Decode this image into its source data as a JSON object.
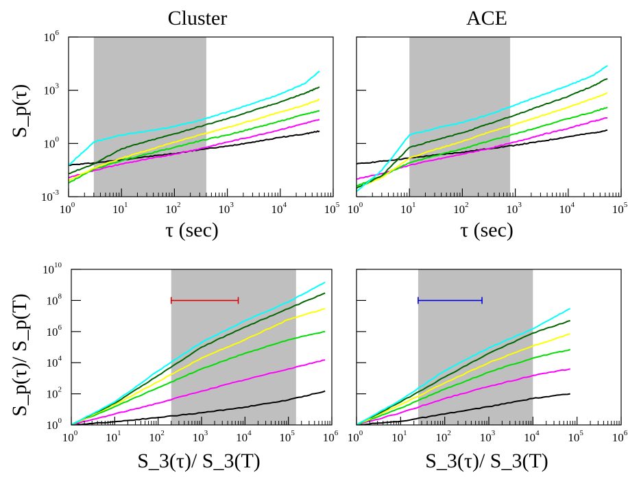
{
  "figure": {
    "col_titles": [
      "Cluster",
      "ACE"
    ]
  },
  "chart_data": [
    {
      "type": "line",
      "panel": "top-left",
      "title": "Cluster",
      "xlabel": "τ (sec)",
      "ylabel": "S_p(τ)",
      "xscale": "log",
      "yscale": "log",
      "xlim": [
        1,
        100000
      ],
      "ylim": [
        0.001,
        1000000
      ],
      "xticks": [
        {
          "v": 1,
          "m": "0"
        },
        {
          "v": 10,
          "m": "1"
        },
        {
          "v": 100,
          "m": "2"
        },
        {
          "v": 1000,
          "m": "3"
        },
        {
          "v": 10000,
          "m": "4"
        },
        {
          "v": 100000,
          "m": "5"
        }
      ],
      "yticks": [
        {
          "v": 0.001,
          "m": "-3"
        },
        {
          "v": 1,
          "m": "0"
        },
        {
          "v": 1000,
          "m": "3"
        },
        {
          "v": 1000000,
          "m": "6"
        }
      ],
      "shaded_x": [
        3,
        400
      ],
      "series": [
        {
          "color": "#000000",
          "x": [
            1,
            3,
            10,
            30,
            100,
            300,
            1000,
            3000,
            10000,
            30000,
            55000
          ],
          "y": [
            0.06,
            0.08,
            0.12,
            0.18,
            0.27,
            0.45,
            0.7,
            1.2,
            2.2,
            3.5,
            5
          ]
        },
        {
          "color": "#ff00ff",
          "x": [
            1,
            3,
            10,
            30,
            100,
            300,
            1000,
            3000,
            10000,
            30000,
            55000
          ],
          "y": [
            0.012,
            0.03,
            0.07,
            0.13,
            0.25,
            0.5,
            1.2,
            2.5,
            6,
            14,
            22
          ]
        },
        {
          "color": "#00dd00",
          "x": [
            1,
            3,
            10,
            30,
            100,
            300,
            1000,
            3000,
            10000,
            30000,
            55000
          ],
          "y": [
            0.006,
            0.035,
            0.11,
            0.25,
            0.6,
            1.4,
            3,
            7,
            18,
            45,
            70
          ]
        },
        {
          "color": "#ffff00",
          "x": [
            1,
            3,
            10,
            30,
            100,
            300,
            1000,
            3000,
            10000,
            30000,
            55000
          ],
          "y": [
            0.008,
            0.04,
            0.15,
            0.4,
            1.2,
            3,
            8,
            20,
            60,
            150,
            300
          ]
        },
        {
          "color": "#006400",
          "x": [
            1,
            3,
            10,
            30,
            100,
            300,
            1000,
            3000,
            10000,
            30000,
            55000
          ],
          "y": [
            0.02,
            0.07,
            0.5,
            1.3,
            3.5,
            9,
            25,
            70,
            220,
            700,
            1500
          ]
        },
        {
          "color": "#00ffff",
          "x": [
            1,
            3,
            10,
            30,
            100,
            300,
            1000,
            3000,
            10000,
            30000,
            55000
          ],
          "y": [
            0.06,
            1.2,
            3,
            5,
            9,
            20,
            60,
            180,
            600,
            2500,
            12000
          ]
        }
      ]
    },
    {
      "type": "line",
      "panel": "top-right",
      "title": "ACE",
      "xlabel": "τ (sec)",
      "ylabel": "",
      "xscale": "log",
      "yscale": "log",
      "xlim": [
        1,
        100000
      ],
      "ylim": [
        0.001,
        1000000
      ],
      "xticks": [
        {
          "v": 1,
          "m": "0"
        },
        {
          "v": 10,
          "m": "1"
        },
        {
          "v": 100,
          "m": "2"
        },
        {
          "v": 1000,
          "m": "3"
        },
        {
          "v": 10000,
          "m": "4"
        },
        {
          "v": 100000,
          "m": "5"
        }
      ],
      "yticks": [
        {
          "v": 0.001,
          "m": ""
        },
        {
          "v": 1,
          "m": ""
        },
        {
          "v": 1000,
          "m": ""
        },
        {
          "v": 1000000,
          "m": ""
        }
      ],
      "shaded_x": [
        10,
        800
      ],
      "series": [
        {
          "color": "#000000",
          "x": [
            1,
            3,
            10,
            30,
            100,
            300,
            1000,
            3000,
            10000,
            30000,
            55000
          ],
          "y": [
            0.07,
            0.1,
            0.15,
            0.22,
            0.32,
            0.5,
            0.8,
            1.3,
            2.4,
            4,
            5.5
          ]
        },
        {
          "color": "#ff00ff",
          "x": [
            1,
            3,
            10,
            30,
            100,
            300,
            1000,
            3000,
            10000,
            30000,
            55000
          ],
          "y": [
            0.01,
            0.02,
            0.06,
            0.12,
            0.25,
            0.5,
            1.2,
            3,
            7,
            18,
            28
          ]
        },
        {
          "color": "#00dd00",
          "x": [
            1,
            3,
            10,
            30,
            100,
            300,
            1000,
            3000,
            10000,
            30000,
            55000
          ],
          "y": [
            0.004,
            0.015,
            0.08,
            0.2,
            0.5,
            1.3,
            3.5,
            9,
            25,
            60,
            110
          ]
        },
        {
          "color": "#ffff00",
          "x": [
            1,
            3,
            10,
            30,
            100,
            300,
            1000,
            3000,
            10000,
            30000,
            55000
          ],
          "y": [
            0.003,
            0.012,
            0.15,
            0.45,
            1.3,
            4,
            12,
            35,
            110,
            350,
            700
          ]
        },
        {
          "color": "#006400",
          "x": [
            1,
            3,
            10,
            30,
            100,
            300,
            1000,
            3000,
            10000,
            30000,
            55000
          ],
          "y": [
            0.003,
            0.015,
            0.6,
            1.5,
            4,
            12,
            40,
            130,
            450,
            1800,
            4500
          ]
        },
        {
          "color": "#00ffff",
          "x": [
            1,
            3,
            10,
            30,
            100,
            300,
            1000,
            3000,
            10000,
            30000,
            55000
          ],
          "y": [
            0.002,
            0.03,
            3,
            7,
            15,
            40,
            150,
            500,
            1800,
            7000,
            25000
          ]
        }
      ]
    },
    {
      "type": "line",
      "panel": "bottom-left",
      "title": "",
      "xlabel": "S_3(τ)/ S_3(T)",
      "ylabel": "S_p(τ)/ S_p(T)",
      "xscale": "log",
      "yscale": "log",
      "xlim": [
        1,
        1000000
      ],
      "ylim": [
        1,
        10000000000
      ],
      "xticks": [
        {
          "v": 1,
          "m": "0"
        },
        {
          "v": 10,
          "m": "1"
        },
        {
          "v": 100,
          "m": "2"
        },
        {
          "v": 1000,
          "m": "3"
        },
        {
          "v": 10000,
          "m": "4"
        },
        {
          "v": 100000,
          "m": "5"
        },
        {
          "v": 1000000,
          "m": "6"
        }
      ],
      "yticks": [
        {
          "v": 1,
          "m": "0"
        },
        {
          "v": 100,
          "m": "2"
        },
        {
          "v": 10000,
          "m": "4"
        },
        {
          "v": 1000000,
          "m": "6"
        },
        {
          "v": 100000000,
          "m": "8"
        },
        {
          "v": 10000000000,
          "m": "10"
        }
      ],
      "shaded_x": [
        200,
        150000
      ],
      "errorbar": {
        "color": "#dd0000",
        "x": [
          200,
          7000
        ],
        "y": 100000000
      },
      "series": [
        {
          "color": "#000000",
          "x": [
            1,
            10,
            100,
            1000,
            10000,
            100000,
            700000
          ],
          "y": [
            1,
            1.6,
            3,
            6,
            14,
            40,
            150
          ]
        },
        {
          "color": "#ff00ff",
          "x": [
            1,
            10,
            100,
            1000,
            10000,
            100000,
            700000
          ],
          "y": [
            1,
            5,
            25,
            150,
            800,
            4000,
            15000
          ]
        },
        {
          "color": "#00dd00",
          "x": [
            1,
            10,
            100,
            1000,
            10000,
            100000,
            700000
          ],
          "y": [
            1,
            15,
            250,
            4000,
            40000,
            300000,
            1000000
          ]
        },
        {
          "color": "#ffff00",
          "x": [
            1,
            10,
            100,
            1000,
            10000,
            100000,
            700000
          ],
          "y": [
            1,
            20,
            600,
            20000,
            300000,
            6000000,
            30000000
          ]
        },
        {
          "color": "#006400",
          "x": [
            1,
            10,
            100,
            1000,
            10000,
            100000,
            700000
          ],
          "y": [
            1,
            25,
            1500,
            100000,
            2000000,
            30000000,
            300000000
          ]
        },
        {
          "color": "#00ffff",
          "x": [
            1,
            10,
            100,
            1000,
            10000,
            100000,
            700000
          ],
          "y": [
            1,
            30,
            3000,
            200000,
            5000000,
            80000000,
            1500000000
          ]
        }
      ]
    },
    {
      "type": "line",
      "panel": "bottom-right",
      "title": "",
      "xlabel": "S_3(τ)/ S_3(T)",
      "ylabel": "",
      "xscale": "log",
      "yscale": "log",
      "xlim": [
        1,
        1000000
      ],
      "ylim": [
        1,
        10000000000
      ],
      "xticks": [
        {
          "v": 1,
          "m": "0"
        },
        {
          "v": 10,
          "m": "1"
        },
        {
          "v": 100,
          "m": "2"
        },
        {
          "v": 1000,
          "m": "3"
        },
        {
          "v": 10000,
          "m": "4"
        },
        {
          "v": 100000,
          "m": "5"
        },
        {
          "v": 1000000,
          "m": "6"
        }
      ],
      "yticks": [
        {
          "v": 1,
          "m": ""
        },
        {
          "v": 100,
          "m": ""
        },
        {
          "v": 10000,
          "m": ""
        },
        {
          "v": 1000000,
          "m": ""
        },
        {
          "v": 100000000,
          "m": ""
        },
        {
          "v": 10000000000,
          "m": ""
        }
      ],
      "shaded_x": [
        25,
        10000
      ],
      "errorbar": {
        "color": "#0000dd",
        "x": [
          25,
          700
        ],
        "y": 100000000
      },
      "series": [
        {
          "color": "#000000",
          "x": [
            1,
            10,
            100,
            1000,
            10000,
            70000
          ],
          "y": [
            1,
            1.7,
            5,
            15,
            50,
            100
          ]
        },
        {
          "color": "#ff00ff",
          "x": [
            1,
            10,
            100,
            1000,
            10000,
            70000
          ],
          "y": [
            1,
            6,
            50,
            300,
            1500,
            4000
          ]
        },
        {
          "color": "#00dd00",
          "x": [
            1,
            10,
            100,
            1000,
            10000,
            70000
          ],
          "y": [
            1,
            12,
            200,
            2500,
            20000,
            70000
          ]
        },
        {
          "color": "#ffff00",
          "x": [
            1,
            10,
            100,
            1000,
            10000,
            70000
          ],
          "y": [
            1,
            20,
            500,
            10000,
            120000,
            700000
          ]
        },
        {
          "color": "#006400",
          "x": [
            1,
            10,
            100,
            1000,
            10000,
            70000
          ],
          "y": [
            1,
            30,
            1200,
            40000,
            800000,
            5000000
          ]
        },
        {
          "color": "#00ffff",
          "x": [
            1,
            10,
            100,
            1000,
            10000,
            70000
          ],
          "y": [
            1,
            40,
            3000,
            90000,
            1500000,
            30000000
          ]
        }
      ]
    }
  ]
}
